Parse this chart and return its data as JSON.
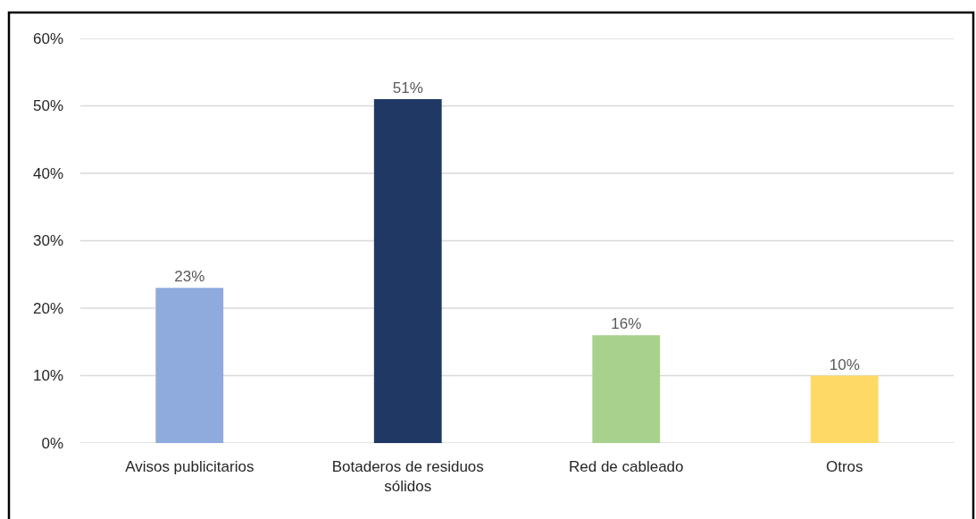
{
  "chart_data": {
    "type": "bar",
    "categories": [
      "Avisos publicitarios",
      "Botaderos de residuos sólidos",
      "Red de cableado",
      "Otros"
    ],
    "values": [
      23,
      51,
      16,
      10
    ],
    "colors": [
      "#8faadc",
      "#203864",
      "#a9d18e",
      "#ffd966"
    ],
    "value_labels": [
      "23%",
      "51%",
      "16%",
      "10%"
    ],
    "ylim": [
      0,
      60
    ],
    "yticks": [
      {
        "value": 0,
        "label": "0%"
      },
      {
        "value": 10,
        "label": "10%"
      },
      {
        "value": 20,
        "label": "20%"
      },
      {
        "value": 30,
        "label": "30%"
      },
      {
        "value": 40,
        "label": "40%"
      },
      {
        "value": 50,
        "label": "50%"
      },
      {
        "value": 60,
        "label": "60%"
      }
    ],
    "grid": "y"
  }
}
